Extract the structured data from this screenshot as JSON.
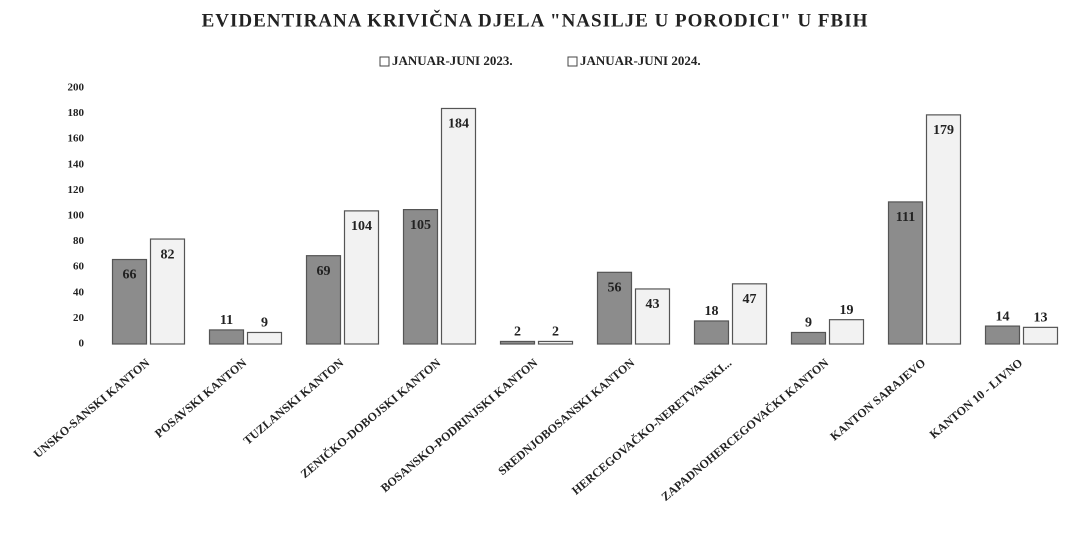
{
  "chart_data": {
    "type": "bar",
    "title": "EVIDENTIRANA KRIVIČNA DJELA \"NASILJE U PORODICI\"  U FBIH",
    "categories": [
      "UNSKO-SANSKI KANTON",
      "POSAVSKI KANTON",
      "TUZLANSKI KANTON",
      "ZENIČKO-DOBOJSKI KANTON",
      "BOSANSKO-PODRINJSKI KANTON",
      "SREDNJOBOSANSKI KANTON",
      "HERCEGOVAČKO-NERETVANSKI...",
      "ZAPADNOHERCEGOVAČKI KANTON",
      "KANTON SARAJEVO",
      "KANTON 10 - LIVNO"
    ],
    "series": [
      {
        "name": "JANUAR-JUNI 2023.",
        "color": "#8c8c8c",
        "values": [
          66,
          11,
          69,
          105,
          2,
          56,
          18,
          9,
          111,
          14
        ]
      },
      {
        "name": "JANUAR-JUNI 2024.",
        "color": "#f2f2f2",
        "values": [
          82,
          9,
          104,
          184,
          2,
          43,
          47,
          19,
          179,
          13
        ]
      }
    ],
    "ylim": [
      0,
      200
    ],
    "yticks": [
      0,
      20,
      40,
      60,
      80,
      100,
      120,
      140,
      160,
      180,
      200
    ],
    "grid": false,
    "legend": "top"
  }
}
